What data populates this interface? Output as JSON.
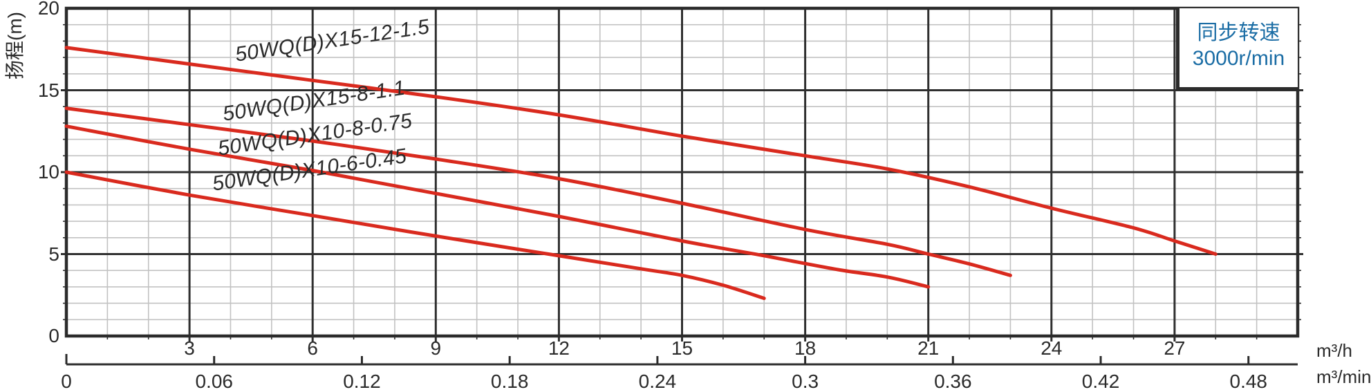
{
  "y_axis": {
    "label": "扬程(m)",
    "ticks": [
      {
        "value": 20,
        "label": "20"
      },
      {
        "value": 15,
        "label": "15"
      },
      {
        "value": 10,
        "label": "10"
      },
      {
        "value": 5,
        "label": "5"
      },
      {
        "value": 0,
        "label": "0"
      }
    ]
  },
  "x_axis_m3h": {
    "unit": "m³/h",
    "ticks": [
      {
        "value": 3,
        "label": "3"
      },
      {
        "value": 6,
        "label": "6"
      },
      {
        "value": 9,
        "label": "9"
      },
      {
        "value": 12,
        "label": "12"
      },
      {
        "value": 15,
        "label": "15"
      },
      {
        "value": 18,
        "label": "18"
      },
      {
        "value": 21,
        "label": "21"
      },
      {
        "value": 24,
        "label": "24"
      },
      {
        "value": 27,
        "label": "27"
      }
    ]
  },
  "x_axis_m3min": {
    "unit": "m³/min",
    "ticks": [
      {
        "value": 0,
        "label": "0"
      },
      {
        "value": 0.06,
        "label": "0.06"
      },
      {
        "value": 0.12,
        "label": "0.12"
      },
      {
        "value": 0.18,
        "label": "0.18"
      },
      {
        "value": 0.24,
        "label": "0.24"
      },
      {
        "value": 0.3,
        "label": "0.3"
      },
      {
        "value": 0.36,
        "label": "0.36"
      },
      {
        "value": 0.42,
        "label": "0.42"
      },
      {
        "value": 0.48,
        "label": "0.48"
      }
    ]
  },
  "legend": {
    "line1": "同步转速",
    "line2": "3000r/min"
  },
  "colors": {
    "curve": "#d92a1e",
    "grid_major": "#2f2f2f",
    "grid_minor": "#c2c2c2",
    "border": "#2b2b2b",
    "legend_text": "#1b6da5",
    "text": "#2b2b2b"
  },
  "chart_data": {
    "type": "line",
    "title": "",
    "xlabel_primary": "m³/h",
    "xlabel_secondary": "m³/min",
    "ylabel": "扬程(m)",
    "xlim": [
      0,
      30
    ],
    "ylim": [
      0,
      20
    ],
    "grid": {
      "major_x": 3,
      "minor_x": 1,
      "major_y": 5,
      "minor_y": 1
    },
    "legend_note": "同步转速 3000r/min",
    "secondary_axis_conversion": "m³/min = m³/h ÷ 60",
    "series": [
      {
        "name": "50WQ(D)X15-12-1.5",
        "points": [
          [
            0,
            17.6
          ],
          [
            3,
            16.6
          ],
          [
            6,
            15.6
          ],
          [
            9,
            14.6
          ],
          [
            12,
            13.5
          ],
          [
            15,
            12.2
          ],
          [
            18,
            11.0
          ],
          [
            20,
            10.2
          ],
          [
            22,
            9.1
          ],
          [
            24,
            7.8
          ],
          [
            26,
            6.6
          ],
          [
            27,
            5.8
          ],
          [
            28,
            5.0
          ]
        ]
      },
      {
        "name": "50WQ(D)X15-8-1.1",
        "points": [
          [
            0,
            13.9
          ],
          [
            3,
            12.9
          ],
          [
            6,
            11.9
          ],
          [
            9,
            10.8
          ],
          [
            12,
            9.6
          ],
          [
            15,
            8.1
          ],
          [
            18,
            6.5
          ],
          [
            20,
            5.6
          ],
          [
            21,
            5.0
          ],
          [
            22,
            4.4
          ],
          [
            23,
            3.7
          ]
        ]
      },
      {
        "name": "50WQ(D)X10-8-0.75",
        "points": [
          [
            0,
            12.8
          ],
          [
            3,
            11.4
          ],
          [
            6,
            10.1
          ],
          [
            9,
            8.7
          ],
          [
            12,
            7.3
          ],
          [
            15,
            5.8
          ],
          [
            17,
            4.9
          ],
          [
            18.8,
            4.05
          ],
          [
            20,
            3.6
          ],
          [
            21,
            3.0
          ]
        ]
      },
      {
        "name": "50WQ(D)X10-6-0.45",
        "points": [
          [
            0,
            10.0
          ],
          [
            3,
            8.6
          ],
          [
            6,
            7.35
          ],
          [
            9,
            6.1
          ],
          [
            12,
            4.9
          ],
          [
            14,
            4.1
          ],
          [
            15,
            3.7
          ],
          [
            16,
            3.1
          ],
          [
            17,
            2.3
          ]
        ]
      }
    ]
  }
}
